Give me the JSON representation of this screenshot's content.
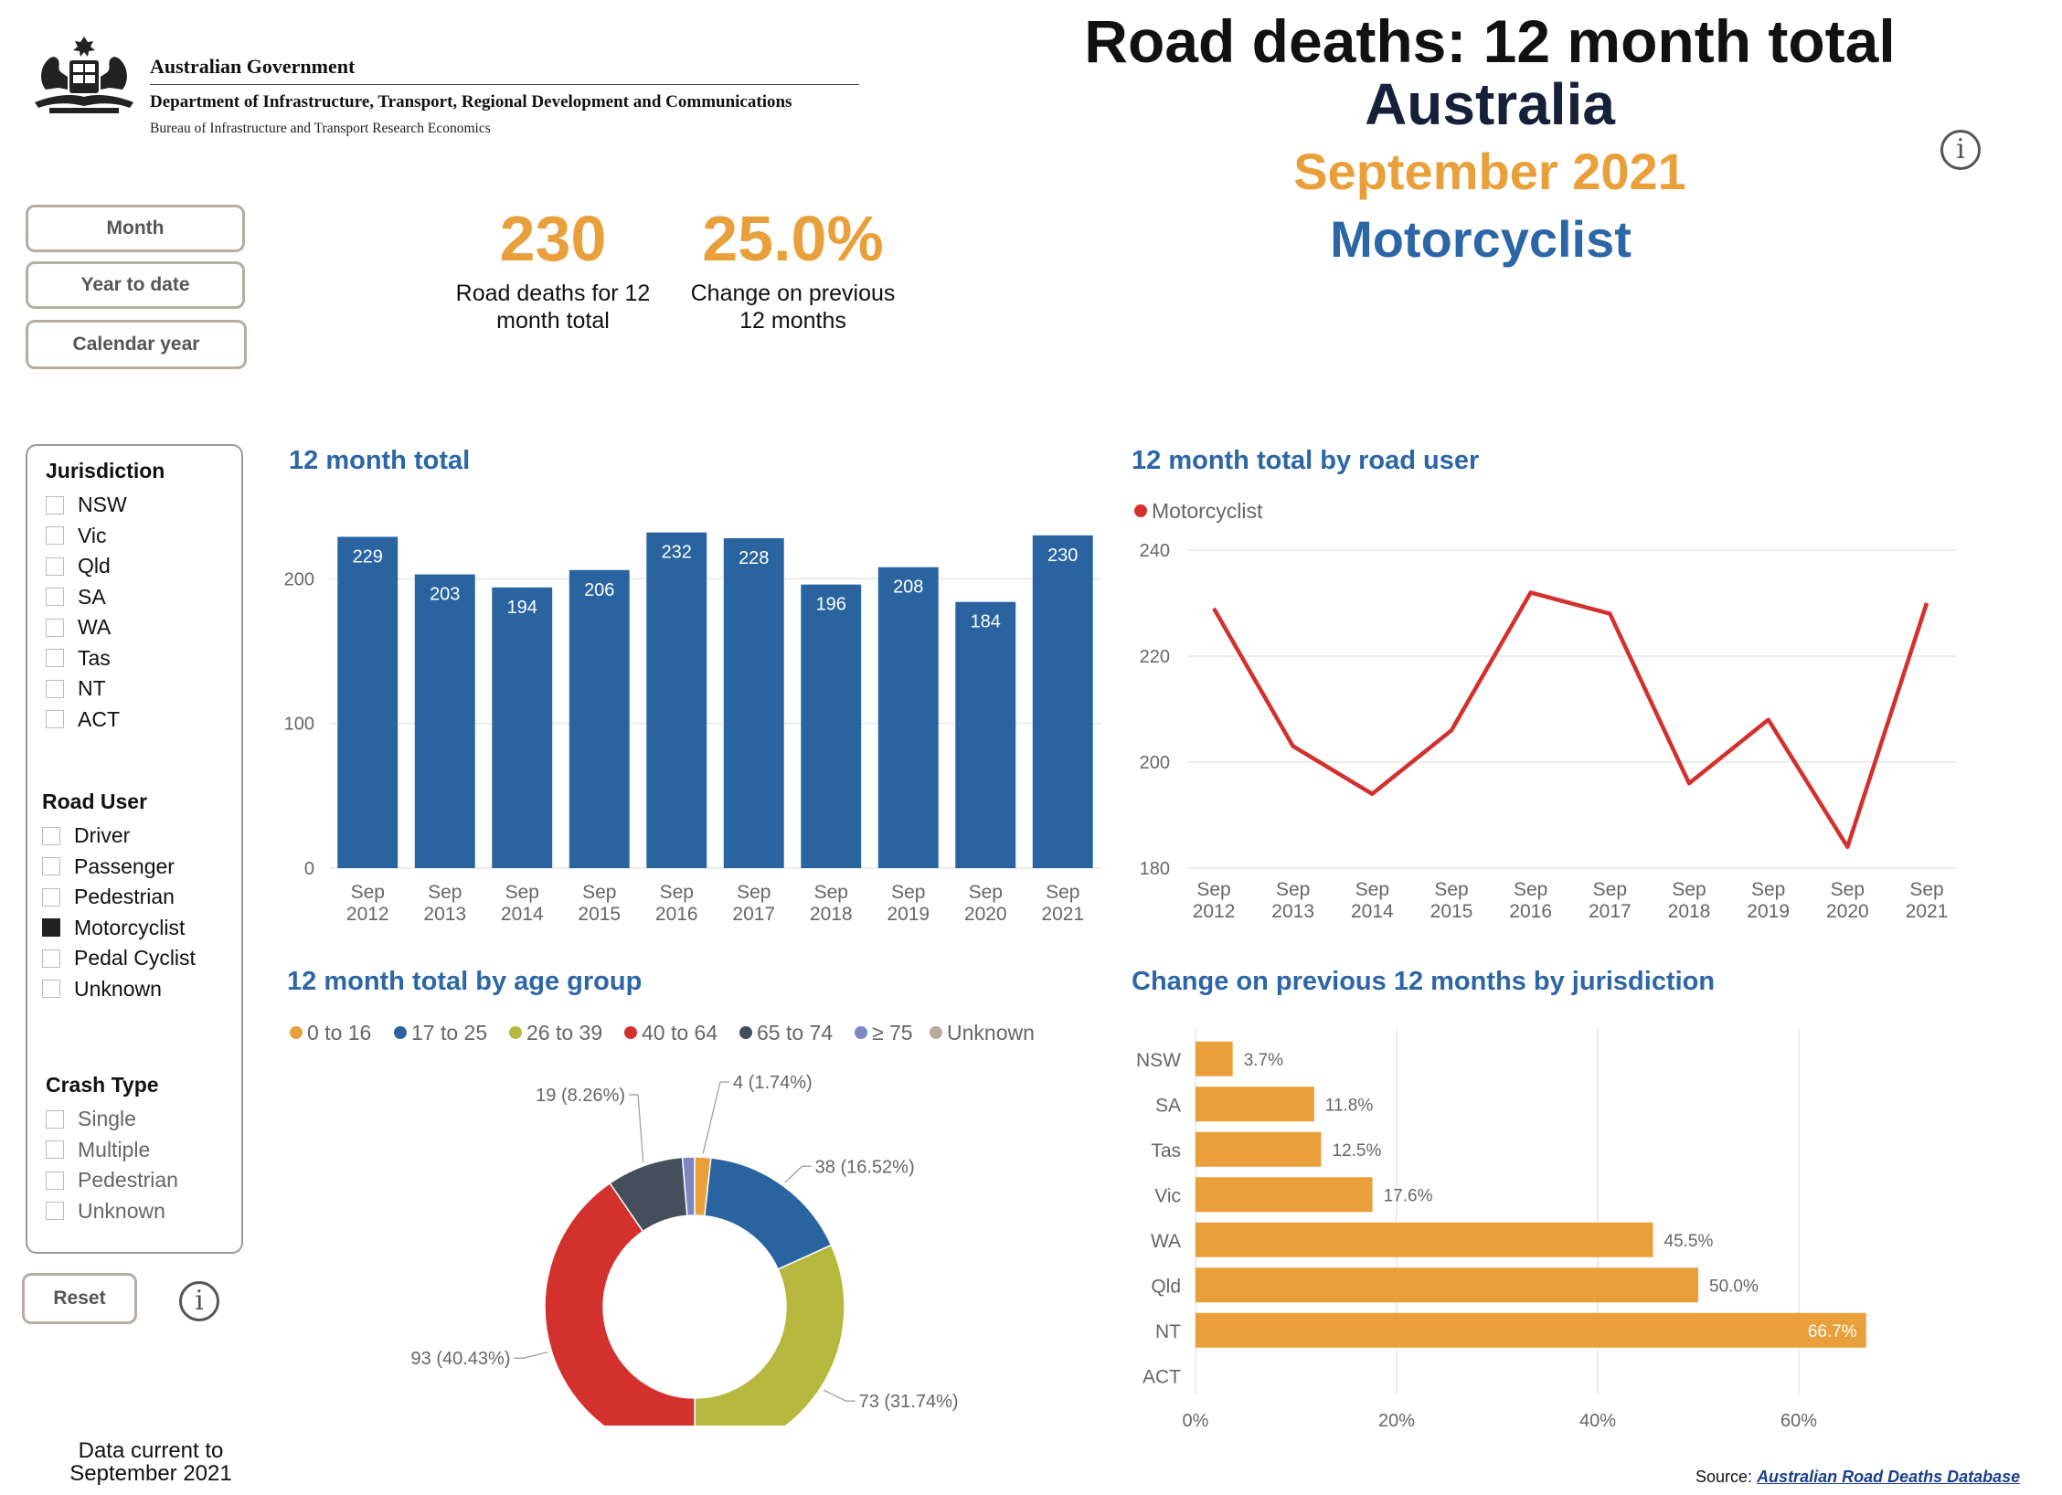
{
  "header": {
    "gov_name": "Australian Government",
    "department": "Department of Infrastructure, Transport, Regional Development and Communications",
    "bureau": "Bureau of Infrastructure and Transport Research Economics",
    "title_line1": "Road deaths: 12 month total",
    "title_line2": "Australia",
    "title_line3": "September 2021",
    "title_line4": "Motorcyclist",
    "info_glyph": "i"
  },
  "period_buttons": [
    "Month",
    "Year to date",
    "Calendar year"
  ],
  "kpis": [
    {
      "value": "230",
      "label_line1": "Road deaths for 12",
      "label_line2": "month total"
    },
    {
      "value": "25.0%",
      "label_line1": "Change on previous",
      "label_line2": "12 months"
    }
  ],
  "filters": {
    "jurisdiction": {
      "title": "Jurisdiction",
      "options": [
        "NSW",
        "Vic",
        "Qld",
        "SA",
        "WA",
        "Tas",
        "NT",
        "ACT"
      ]
    },
    "road_user": {
      "title": "Road User",
      "options": [
        "Driver",
        "Passenger",
        "Pedestrian",
        "Motorcyclist",
        "Pedal Cyclist",
        "Unknown"
      ],
      "selected": "Motorcyclist"
    },
    "crash_type": {
      "title": "Crash Type",
      "options": [
        "Single",
        "Multiple",
        "Pedestrian",
        "Unknown"
      ]
    },
    "reset_label": "Reset"
  },
  "footer": {
    "data_current_line1": "Data current to",
    "data_current_line2": "September 2021",
    "source_label": "Source:",
    "source_link": "Australian Road Deaths Database"
  },
  "colors": {
    "accent_orange": "#e9a03b",
    "accent_blue": "#2c66a6",
    "bar_blue": "#2a64a0",
    "line_red": "#d2312e"
  },
  "chart_data": [
    {
      "type": "bar",
      "title": "12 month total",
      "categories": [
        "Sep 2012",
        "Sep 2013",
        "Sep 2014",
        "Sep 2015",
        "Sep 2016",
        "Sep 2017",
        "Sep 2018",
        "Sep 2019",
        "Sep 2020",
        "Sep 2021"
      ],
      "values": [
        229,
        203,
        194,
        206,
        232,
        228,
        196,
        208,
        184,
        230
      ],
      "yticks": [
        0,
        100,
        200
      ],
      "ylim": [
        0,
        240
      ],
      "data_labels": true,
      "grid": true
    },
    {
      "type": "line",
      "title": "12 month total by road user",
      "series": [
        {
          "name": "Motorcyclist",
          "color": "#d2312e",
          "values": [
            229,
            203,
            194,
            206,
            232,
            228,
            196,
            208,
            184,
            230
          ]
        }
      ],
      "categories": [
        "Sep 2012",
        "Sep 2013",
        "Sep 2014",
        "Sep 2015",
        "Sep 2016",
        "Sep 2017",
        "Sep 2018",
        "Sep 2019",
        "Sep 2020",
        "Sep 2021"
      ],
      "yticks": [
        180,
        200,
        220,
        240
      ],
      "ylim": [
        180,
        240
      ],
      "legend": "top-left",
      "grid": true
    },
    {
      "type": "pie",
      "title": "12 month total by age group",
      "donut": true,
      "legend": "top",
      "slices": [
        {
          "name": "0 to 16",
          "value": 4,
          "label": "4 (1.74%)",
          "color": "#e9a03b"
        },
        {
          "name": "17 to 25",
          "value": 38,
          "label": "38 (16.52%)",
          "color": "#2a64a0"
        },
        {
          "name": "26 to 39",
          "value": 73,
          "label": "73 (31.74%)",
          "color": "#b7b83e"
        },
        {
          "name": "40 to 64",
          "value": 93,
          "label": "93 (40.43%)",
          "color": "#d2312e"
        },
        {
          "name": "65 to 74",
          "value": 19,
          "label": "19 (8.26%)",
          "color": "#454f5c"
        },
        {
          "name": "≥ 75",
          "value": 3,
          "label": "",
          "color": "#7c87c4"
        },
        {
          "name": "Unknown",
          "value": 0,
          "label": "",
          "color": "#b6ac9e"
        }
      ]
    },
    {
      "type": "bar",
      "orientation": "horizontal",
      "title": "Change on previous 12 months by jurisdiction",
      "categories": [
        "NSW",
        "SA",
        "Tas",
        "Vic",
        "WA",
        "Qld",
        "NT",
        "ACT"
      ],
      "values": [
        3.7,
        11.8,
        12.5,
        17.6,
        45.5,
        50.0,
        66.7,
        null
      ],
      "data_labels": [
        "3.7%",
        "11.8%",
        "12.5%",
        "17.6%",
        "45.5%",
        "50.0%",
        "66.7%",
        ""
      ],
      "xticks": [
        "0%",
        "20%",
        "40%",
        "60%"
      ],
      "xtick_values": [
        0,
        20,
        40,
        60
      ],
      "xlim": [
        0,
        75
      ],
      "grid": true
    }
  ]
}
